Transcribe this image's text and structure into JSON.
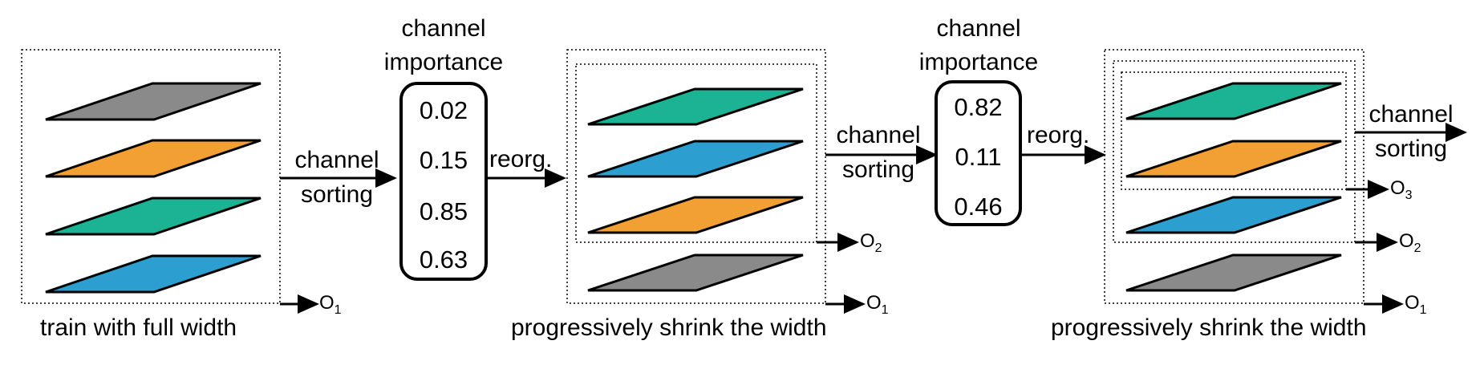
{
  "colors": {
    "gray": "#8a8a8a",
    "orange": "#f2a033",
    "green": "#1bb394",
    "blue": "#2c9fd0",
    "line": "#000000"
  },
  "stage1": {
    "caption": "train with full width",
    "layers": [
      "gray",
      "orange",
      "green",
      "blue"
    ],
    "output": {
      "letter": "O",
      "sub": "1"
    }
  },
  "sort1": {
    "line1": "channel",
    "line2": "sorting"
  },
  "importance1": {
    "title_line1": "channel",
    "title_line2": "importance",
    "values": [
      "0.02",
      "0.15",
      "0.85",
      "0.63"
    ]
  },
  "reorg1": "reorg.",
  "stage2": {
    "caption": "progressively shrink the width",
    "layers": [
      "green",
      "blue",
      "orange",
      "gray"
    ],
    "outputs": [
      {
        "letter": "O",
        "sub": "2"
      },
      {
        "letter": "O",
        "sub": "1"
      }
    ]
  },
  "sort2": {
    "line1": "channel",
    "line2": "sorting"
  },
  "importance2": {
    "title_line1": "channel",
    "title_line2": "importance",
    "values": [
      "0.82",
      "0.11",
      "0.46"
    ]
  },
  "reorg2": "reorg.",
  "stage3": {
    "caption": "progressively shrink the width",
    "layers": [
      "green",
      "orange",
      "blue",
      "gray"
    ],
    "outputs": [
      {
        "letter": "O",
        "sub": "3"
      },
      {
        "letter": "O",
        "sub": "2"
      },
      {
        "letter": "O",
        "sub": "1"
      }
    ]
  },
  "sort3": {
    "line1": "channel",
    "line2": "sorting"
  }
}
